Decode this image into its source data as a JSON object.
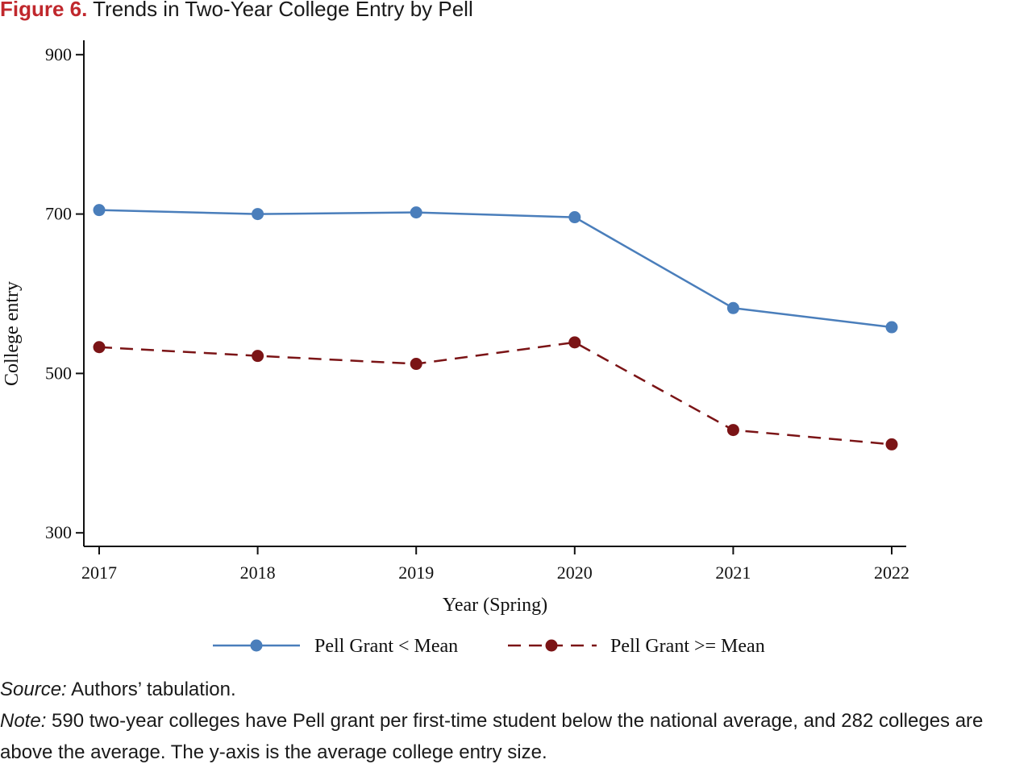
{
  "figure": {
    "label": "Figure 6.",
    "title": "Trends in Two-Year College Entry by Pell"
  },
  "colors": {
    "label": "#c0282d",
    "series_low": "#4a7ebb",
    "series_high": "#7b1416",
    "axis": "#111111"
  },
  "chart_data": {
    "type": "line",
    "title": "Trends in Two-Year College Entry by Pell",
    "xlabel": "Year (Spring)",
    "ylabel": "College entry",
    "x": [
      2017,
      2018,
      2019,
      2020,
      2021,
      2022
    ],
    "x_tick_labels": [
      "2017",
      "2018",
      "2019",
      "2020",
      "2021",
      "2022"
    ],
    "y_ticks": [
      300,
      500,
      700,
      900
    ],
    "y_tick_labels": [
      "300",
      "500",
      "700",
      "900"
    ],
    "ylim": [
      283,
      918
    ],
    "grid": false,
    "legend_position": "bottom",
    "series": [
      {
        "name": "Pell Grant < Mean",
        "style": "solid",
        "color": "#4a7ebb",
        "values": [
          705,
          700,
          702,
          696,
          582,
          558
        ]
      },
      {
        "name": "Pell Grant >= Mean",
        "style": "dashed",
        "color": "#7b1416",
        "values": [
          533,
          522,
          512,
          539,
          429,
          411
        ]
      }
    ]
  },
  "notes": {
    "source_label": "Source:",
    "source_text": " Authors’ tabulation.",
    "note_label": "Note:",
    "note_text": " 590 two-year colleges have Pell grant per first-time student below the national average, and 282 colleges are above the average. The y-axis is the average college entry size."
  }
}
